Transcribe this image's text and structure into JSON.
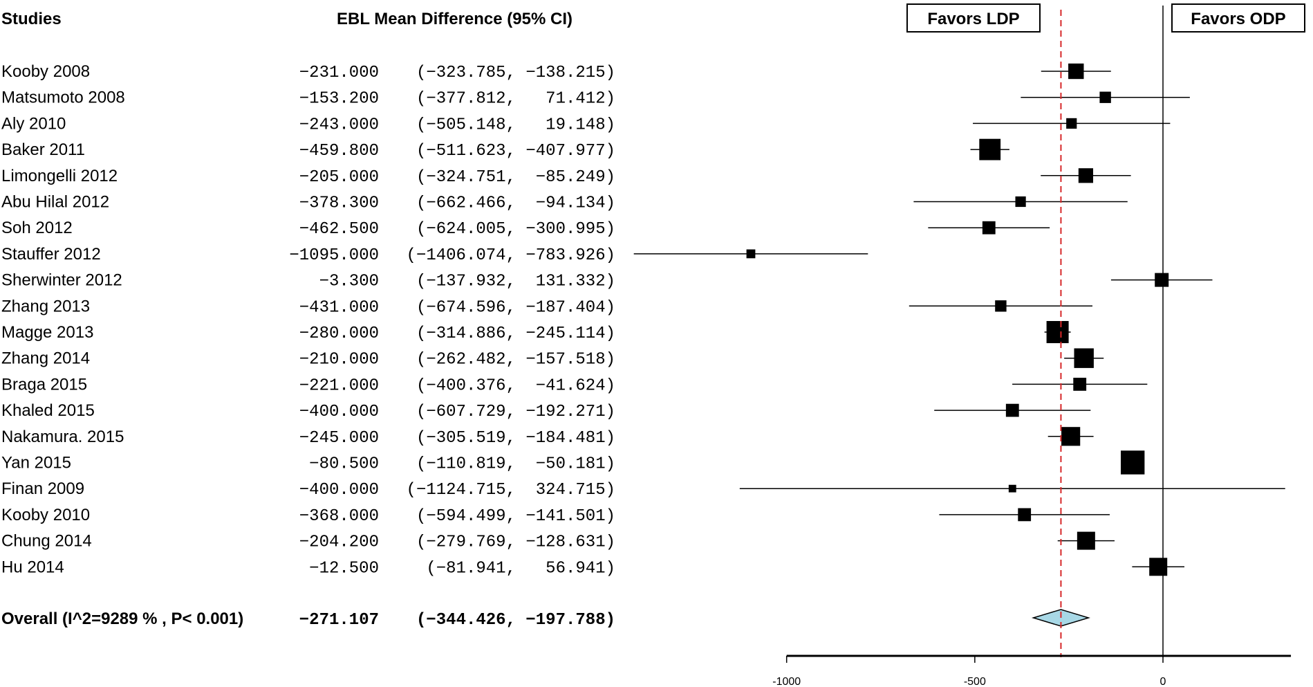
{
  "chart_data": {
    "type": "forest",
    "headers": {
      "studies": "Studies",
      "effect": "EBL Mean Difference (95% CI)"
    },
    "favors_left": "Favors LDP",
    "favors_right": "Favors ODP",
    "studies": [
      {
        "name": "Kooby 2008",
        "est_text": "−231.000",
        "ci_text": "(−323.785, −138.215)",
        "est": -231.0,
        "lo": -323.785,
        "hi": -138.215,
        "weight": 0.6
      },
      {
        "name": "Matsumoto 2008",
        "est_text": "−153.200",
        "ci_text": "(−377.812,   71.412)",
        "est": -153.2,
        "lo": -377.812,
        "hi": 71.412,
        "weight": 0.35
      },
      {
        "name": "Aly  2010",
        "est_text": "−243.000",
        "ci_text": "(−505.148,   19.148)",
        "est": -243.0,
        "lo": -505.148,
        "hi": 19.148,
        "weight": 0.3
      },
      {
        "name": "Baker 2011",
        "est_text": "−459.800",
        "ci_text": "(−511.623, −407.977)",
        "est": -459.8,
        "lo": -511.623,
        "hi": -407.977,
        "weight": 0.95
      },
      {
        "name": "Limongelli 2012",
        "est_text": "−205.000",
        "ci_text": "(−324.751,  −85.249)",
        "est": -205.0,
        "lo": -324.751,
        "hi": -85.249,
        "weight": 0.55
      },
      {
        "name": "Abu Hilal 2012",
        "est_text": "−378.300",
        "ci_text": "(−662.466,  −94.134)",
        "est": -378.3,
        "lo": -662.466,
        "hi": -94.134,
        "weight": 0.3
      },
      {
        "name": "Soh  2012",
        "est_text": "−462.500",
        "ci_text": "(−624.005, −300.995)",
        "est": -462.5,
        "lo": -624.005,
        "hi": -300.995,
        "weight": 0.45
      },
      {
        "name": "Stauffer  2012",
        "est_text": "−1095.000",
        "ci_text": "(−1406.074, −783.926)",
        "est": -1095.0,
        "lo": -1406.074,
        "hi": -783.926,
        "weight": 0.2
      },
      {
        "name": "Sherwinter  2012",
        "est_text": "−3.300",
        "ci_text": "(−137.932,  131.332)",
        "est": -3.3,
        "lo": -137.932,
        "hi": 131.332,
        "weight": 0.5
      },
      {
        "name": "Zhang 2013",
        "est_text": "−431.000",
        "ci_text": "(−674.596, −187.404)",
        "est": -431.0,
        "lo": -674.596,
        "hi": -187.404,
        "weight": 0.35
      },
      {
        "name": "Magge  2013",
        "est_text": "−280.000",
        "ci_text": "(−314.886, −245.114)",
        "est": -280.0,
        "lo": -314.886,
        "hi": -245.114,
        "weight": 1.0
      },
      {
        "name": "Zhang  2014",
        "est_text": "−210.000",
        "ci_text": "(−262.482, −157.518)",
        "est": -210.0,
        "lo": -262.482,
        "hi": -157.518,
        "weight": 0.85
      },
      {
        "name": "Braga  2015",
        "est_text": "−221.000",
        "ci_text": "(−400.376,  −41.624)",
        "est": -221.0,
        "lo": -400.376,
        "hi": -41.624,
        "weight": 0.45
      },
      {
        "name": "Khaled 2015",
        "est_text": "−400.000",
        "ci_text": "(−607.729, −192.271)",
        "est": -400.0,
        "lo": -607.729,
        "hi": -192.271,
        "weight": 0.45
      },
      {
        "name": "Nakamura. 2015",
        "est_text": "−245.000",
        "ci_text": "(−305.519, −184.481)",
        "est": -245.0,
        "lo": -305.519,
        "hi": -184.481,
        "weight": 0.8
      },
      {
        "name": "Yan  2015",
        "est_text": "−80.500",
        "ci_text": "(−110.819,  −50.181)",
        "est": -80.5,
        "lo": -110.819,
        "hi": -50.181,
        "weight": 1.1
      },
      {
        "name": "Finan 2009",
        "est_text": "−400.000",
        "ci_text": "(−1124.715,  324.715)",
        "est": -400.0,
        "lo": -1124.715,
        "hi": 324.715,
        "weight": 0.12
      },
      {
        "name": "Kooby  2010",
        "est_text": "−368.000",
        "ci_text": "(−594.499, −141.501)",
        "est": -368.0,
        "lo": -594.499,
        "hi": -141.501,
        "weight": 0.45
      },
      {
        "name": "Chung  2014",
        "est_text": "−204.200",
        "ci_text": "(−279.769, −128.631)",
        "est": -204.2,
        "lo": -279.769,
        "hi": -128.631,
        "weight": 0.75
      },
      {
        "name": "Hu 2014",
        "est_text": "−12.500",
        "ci_text": "(−81.941,   56.941)",
        "est": -12.5,
        "lo": -81.941,
        "hi": 56.941,
        "weight": 0.75
      }
    ],
    "overall": {
      "label": "Overall (I^2=9289 % , P< 0.001)",
      "est_text": "−271.107",
      "ci_text": "(−344.426, −197.788)",
      "est": -271.107,
      "lo": -344.426,
      "hi": -197.788
    },
    "x_ticks": [
      -1000,
      -500,
      0
    ],
    "x_tick_labels": [
      "-1000",
      "-500",
      "0"
    ],
    "xlim": [
      -1000,
      340
    ],
    "reference_line": 0,
    "diamond_color": "#a8d8e6",
    "overall_line_color": "#d62728"
  }
}
